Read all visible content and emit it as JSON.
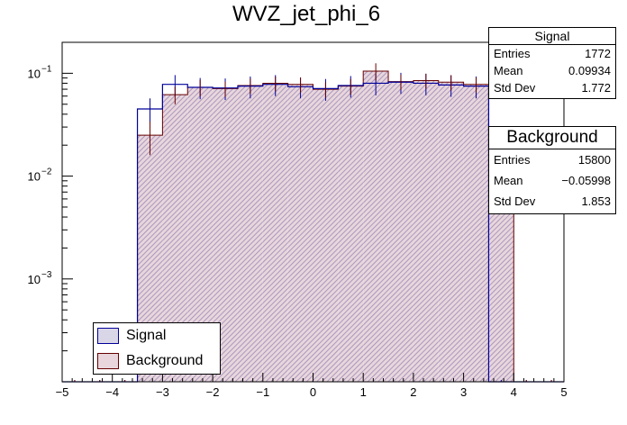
{
  "title": "WVZ_jet_phi_6",
  "colors": {
    "signal": "#000099",
    "background": "#660000",
    "bkg_fill": "#e8d6dc",
    "hatch": "#9b88b8"
  },
  "chart_data": {
    "type": "bar",
    "title": "WVZ_jet_phi_6",
    "xlabel": "",
    "ylabel": "",
    "xlim": [
      -5,
      5
    ],
    "ylim": [
      0.0001,
      0.2
    ],
    "yscale": "log",
    "bin_edges": [
      -5,
      -4.5,
      -4,
      -3.5,
      -3,
      -2.5,
      -2,
      -1.5,
      -1,
      -0.5,
      0,
      0.5,
      1,
      1.5,
      2,
      2.5,
      3,
      3.5,
      4,
      4.5,
      5
    ],
    "x_ticks": [
      "−5",
      "−4",
      "−3",
      "−2",
      "−1",
      "0",
      "1",
      "2",
      "3",
      "4",
      "5"
    ],
    "y_ticks": [
      {
        "value": 0.1,
        "base": "10",
        "exp": "−1"
      },
      {
        "value": 0.01,
        "base": "10",
        "exp": "−2"
      },
      {
        "value": 0.001,
        "base": "10",
        "exp": "−3"
      }
    ],
    "series": [
      {
        "name": "Signal",
        "style": "outline",
        "values": [
          0,
          0,
          0,
          0.045,
          0.078,
          0.073,
          0.072,
          0.075,
          0.078,
          0.074,
          0.071,
          0.076,
          0.08,
          0.082,
          0.08,
          0.077,
          0.075,
          0,
          0,
          0
        ],
        "errors": [
          0,
          0,
          0,
          0.012,
          0.018,
          0.017,
          0.017,
          0.018,
          0.018,
          0.017,
          0.017,
          0.018,
          0.019,
          0.019,
          0.019,
          0.018,
          0.018,
          0,
          0,
          0
        ]
      },
      {
        "name": "Background",
        "style": "hatched",
        "values": [
          0,
          0,
          0,
          0.025,
          0.062,
          0.073,
          0.071,
          0.076,
          0.08,
          0.078,
          0.07,
          0.075,
          0.105,
          0.083,
          0.085,
          0.082,
          0.078,
          0.018,
          0,
          0
        ],
        "errors": [
          0,
          0,
          0,
          0.009,
          0.012,
          0.013,
          0.012,
          0.013,
          0.013,
          0.013,
          0.012,
          0.013,
          0.02,
          0.014,
          0.014,
          0.014,
          0.013,
          0.007,
          0,
          0
        ]
      }
    ],
    "legend": {
      "position": "bottom-left",
      "entries": [
        "Signal",
        "Background"
      ]
    }
  },
  "stats": {
    "signal": {
      "header": "Signal",
      "rows": [
        {
          "label": "Entries",
          "value": "1772"
        },
        {
          "label": "Mean",
          "value": "0.09934"
        },
        {
          "label": "Std Dev",
          "value": "1.772"
        }
      ]
    },
    "background": {
      "header": "Background",
      "rows": [
        {
          "label": "Entries",
          "value": "15800"
        },
        {
          "label": "Mean",
          "value": "−0.05998"
        },
        {
          "label": "Std Dev",
          "value": "1.853"
        }
      ]
    }
  },
  "legend": {
    "signal_label": "Signal",
    "background_label": "Background"
  }
}
